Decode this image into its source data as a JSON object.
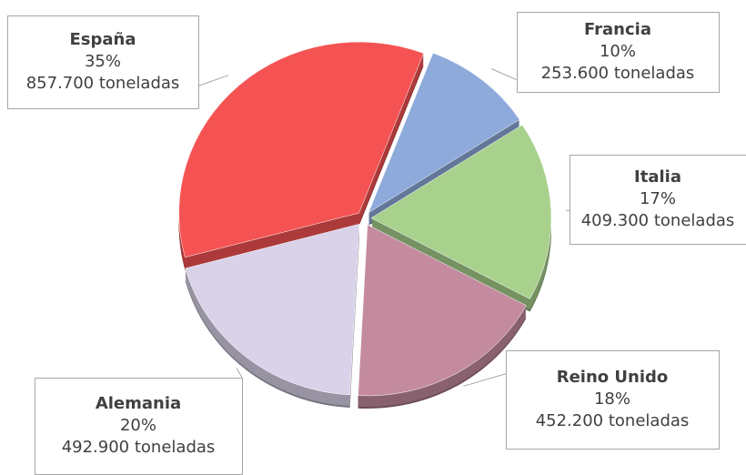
{
  "chart_data": {
    "type": "pie",
    "categories": [
      "Francia",
      "Italia",
      "Reino Unido",
      "Alemania",
      "España"
    ],
    "values": [
      10,
      17,
      18,
      20,
      35
    ],
    "value_labels": [
      "10%",
      "17%",
      "18%",
      "20%",
      "35%"
    ],
    "amounts": [
      253600,
      409300,
      452200,
      492900,
      857700
    ],
    "amount_labels": [
      "253.600 toneladas",
      "409.300 toneladas",
      "452.200 toneladas",
      "492.900 toneladas",
      "857.700 toneladas"
    ],
    "colors": [
      "#8eaadb",
      "#a9d18e",
      "#c48b9f",
      "#d9d2e9",
      "#f55353"
    ]
  }
}
